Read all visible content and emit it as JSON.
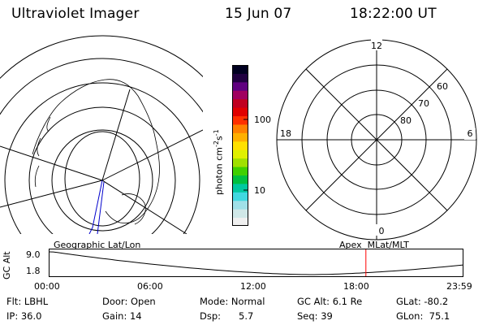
{
  "header": {
    "title": "Ultraviolet Imager",
    "date": "15 Jun 07",
    "time": "18:22:00 UT"
  },
  "left_panel": {
    "label": "Geographic Lat/Lon"
  },
  "right_panel": {
    "label": "Apex  MLat/MLT",
    "mlt_labels": {
      "top": "12",
      "right": "6",
      "bottom": "0",
      "left": "18"
    },
    "lat_labels": [
      "60",
      "70",
      "80"
    ]
  },
  "colorbar": {
    "unit_label": "photon cm",
    "unit_exp1": "-2",
    "unit_mid": "s",
    "unit_exp2": "-1",
    "ticks": [
      "100",
      "10"
    ],
    "colors": [
      "#f0f0f0",
      "#d0e8e8",
      "#a0e0e8",
      "#40d8e0",
      "#00c8a0",
      "#00c040",
      "#40d000",
      "#a0e000",
      "#e0f000",
      "#ffe000",
      "#ffb000",
      "#ff8000",
      "#ff3000",
      "#e00000",
      "#c00020",
      "#a00060",
      "#600080",
      "#200040",
      "#000020"
    ]
  },
  "altitude_strip": {
    "ylabel": "GC Alt",
    "ytick_top": "9.0",
    "ytick_bottom": "1.8",
    "xticks": [
      "00:00",
      "06:00",
      "12:00",
      "18:00",
      "23:59"
    ],
    "marker_time": "18:22",
    "marker_color": "#ff0000"
  },
  "info": {
    "filter": "Flt: LBHL",
    "door": "Door: Open",
    "mode": "Mode: Normal",
    "gc_alt": "GC Alt: 6.1 Re",
    "glat": "GLat: -80.2",
    "ip": "IP: 36.0",
    "gain": "Gain: 14",
    "dsp_label": "Dsp:",
    "dsp_value": "5.7",
    "seq": "Seq: 39",
    "glon": "GLon:  75.1"
  }
}
